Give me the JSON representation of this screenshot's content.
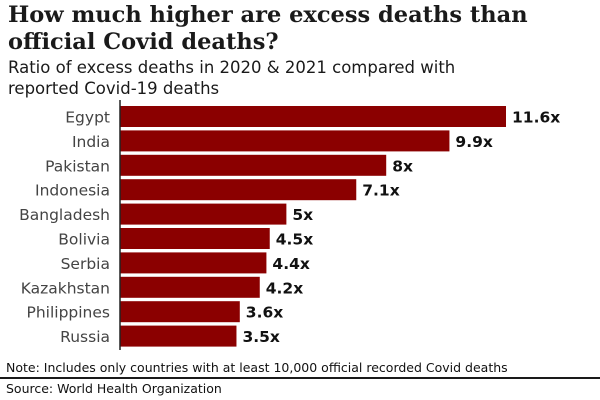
{
  "chart_data": {
    "type": "bar",
    "orientation": "horizontal",
    "title": "How much higher are excess deaths than official Covid deaths?",
    "subtitle": "Ratio of excess deaths in 2020 & 2021 compared with reported Covid-19 deaths",
    "categories": [
      "Egypt",
      "India",
      "Pakistan",
      "Indonesia",
      "Bangladesh",
      "Bolivia",
      "Serbia",
      "Kazakhstan",
      "Philippines",
      "Russia"
    ],
    "values": [
      11.6,
      9.9,
      8,
      7.1,
      5,
      4.5,
      4.4,
      4.2,
      3.6,
      3.5
    ],
    "value_labels": [
      "11.6x",
      "9.9x",
      "8x",
      "7.1x",
      "5x",
      "4.5x",
      "4.4x",
      "4.2x",
      "3.6x",
      "3.5x"
    ],
    "xlim": [
      0,
      11.6
    ],
    "bar_color": "#8b0000"
  },
  "title_line1": "How much higher are excess deaths than",
  "title_line2": "official Covid deaths?",
  "subtitle_line1": "Ratio of excess deaths in 2020 & 2021 compared with",
  "subtitle_line2": "reported Covid-19 deaths",
  "note": "Note: Includes only countries with at least 10,000 official recorded Covid deaths",
  "source": "Source: World Health Organization"
}
